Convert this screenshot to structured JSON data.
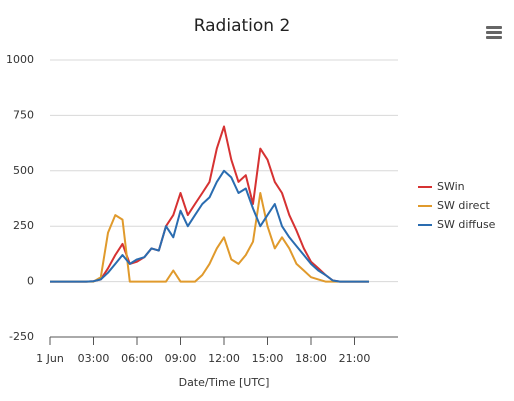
{
  "chart_data": {
    "type": "line",
    "title": "Radiation 2",
    "x_label": "Date/Time [UTC]",
    "x": [
      0,
      0.5,
      1,
      1.5,
      2,
      2.5,
      3,
      3.5,
      4,
      4.5,
      5,
      5.5,
      6,
      6.5,
      7,
      7.5,
      8,
      8.5,
      9,
      9.5,
      10,
      10.5,
      11,
      11.5,
      12,
      12.5,
      13,
      13.5,
      14,
      14.5,
      15,
      15.5,
      16,
      16.5,
      17,
      17.5,
      18,
      18.5,
      19,
      19.5,
      20,
      20.5,
      21,
      21.5,
      22
    ],
    "series": [
      {
        "name": "SWin",
        "color": "#d63232",
        "values": [
          0,
          0,
          0,
          0,
          0,
          0,
          2,
          10,
          60,
          120,
          170,
          80,
          90,
          110,
          150,
          140,
          250,
          300,
          400,
          300,
          350,
          400,
          450,
          600,
          700,
          550,
          450,
          480,
          350,
          600,
          550,
          450,
          400,
          300,
          230,
          150,
          90,
          60,
          30,
          5,
          0,
          0,
          0,
          0,
          0
        ]
      },
      {
        "name": "SW direct",
        "color": "#e09a2c",
        "values": [
          0,
          0,
          0,
          0,
          0,
          0,
          0,
          20,
          220,
          300,
          280,
          0,
          0,
          0,
          0,
          0,
          0,
          50,
          0,
          0,
          0,
          30,
          80,
          150,
          200,
          100,
          80,
          120,
          180,
          400,
          250,
          150,
          200,
          150,
          80,
          50,
          20,
          10,
          0,
          0,
          0,
          0,
          0,
          0,
          0
        ]
      },
      {
        "name": "SW diffuse",
        "color": "#2a6cb0",
        "values": [
          0,
          0,
          0,
          0,
          0,
          0,
          2,
          10,
          40,
          80,
          120,
          80,
          100,
          110,
          150,
          140,
          250,
          200,
          320,
          250,
          300,
          350,
          380,
          450,
          500,
          470,
          400,
          420,
          330,
          250,
          300,
          350,
          250,
          200,
          160,
          120,
          80,
          50,
          30,
          5,
          0,
          0,
          0,
          0,
          0
        ]
      }
    ],
    "xlim": [
      0,
      24
    ],
    "xticks": [
      {
        "value": 0,
        "label": "1 Jun"
      },
      {
        "value": 3,
        "label": "03:00"
      },
      {
        "value": 6,
        "label": "06:00"
      },
      {
        "value": 9,
        "label": "09:00"
      },
      {
        "value": 12,
        "label": "12:00"
      },
      {
        "value": 15,
        "label": "15:00"
      },
      {
        "value": 18,
        "label": "18:00"
      },
      {
        "value": 21,
        "label": "21:00"
      }
    ],
    "ylim": [
      -250,
      1000
    ],
    "yticks": [
      -250,
      0,
      250,
      500,
      750,
      1000
    ],
    "grid": true,
    "legend": "right"
  }
}
